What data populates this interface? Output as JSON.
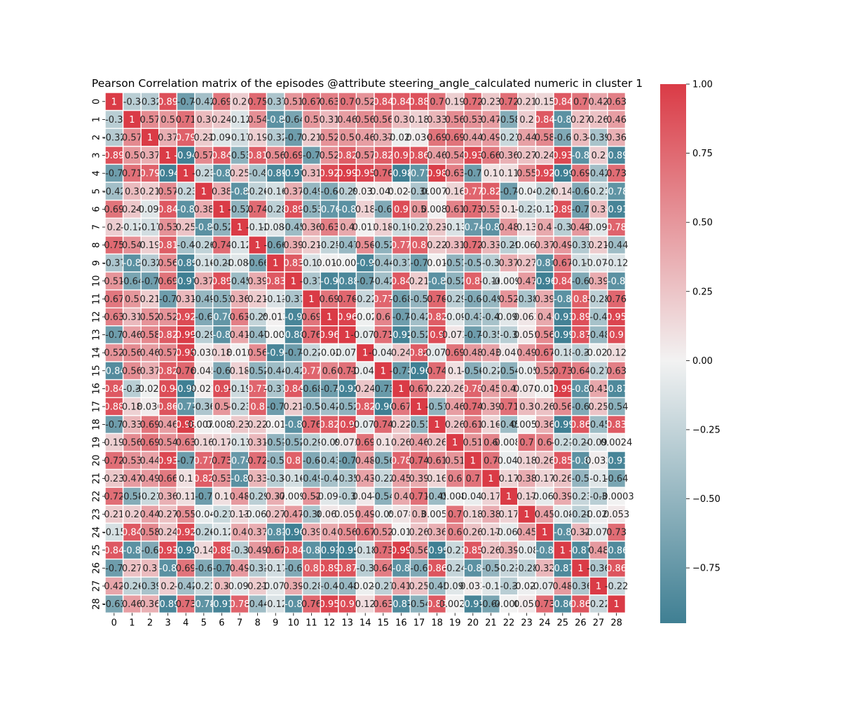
{
  "chart_data": {
    "type": "heatmap",
    "title": "Pearson Correlation matrix of the episodes  @attribute steering_angle_calculated numeric in cluster  1",
    "xlabel": "",
    "ylabel": "",
    "x_categories": [
      "0",
      "1",
      "2",
      "3",
      "4",
      "5",
      "6",
      "7",
      "8",
      "9",
      "10",
      "11",
      "12",
      "13",
      "14",
      "15",
      "16",
      "17",
      "18",
      "19",
      "20",
      "21",
      "22",
      "23",
      "24",
      "25",
      "26",
      "27",
      "28"
    ],
    "y_categories": [
      "0",
      "1",
      "2",
      "3",
      "4",
      "5",
      "6",
      "7",
      "8",
      "9",
      "10",
      "11",
      "12",
      "13",
      "14",
      "15",
      "16",
      "17",
      "18",
      "19",
      "20",
      "21",
      "22",
      "23",
      "24",
      "25",
      "26",
      "27",
      "28"
    ],
    "vmin": -0.95,
    "vmax": 1.0,
    "colorbar_ticks": [
      1.0,
      0.75,
      0.5,
      0.25,
      0.0,
      -0.25,
      -0.5,
      -0.75
    ],
    "colorbar_tick_labels": [
      "1.00",
      "0.75",
      "0.50",
      "0.25",
      "0.00",
      "−0.25",
      "−0.50",
      "−0.75"
    ],
    "colormap": {
      "negative": "#3f7f93",
      "center": "#f2f2f2",
      "positive": "#da3b46"
    },
    "grid_color": "#ffffff",
    "legend": "colorbar-right",
    "values": [
      [
        1,
        -0.3,
        -0.32,
        0.89,
        -0.7,
        -0.42,
        0.69,
        0.2,
        0.75,
        -0.37,
        0.51,
        0.67,
        0.63,
        0.7,
        0.52,
        0.84,
        0.84,
        0.88,
        0.7,
        0.19,
        0.72,
        0.23,
        0.72,
        0.21,
        0.15,
        0.84,
        0.7,
        0.42,
        0.63
      ],
      [
        -0.3,
        1,
        0.57,
        0.5,
        0.71,
        0.3,
        0.24,
        -0.12,
        0.54,
        -0.8,
        -0.64,
        0.5,
        0.31,
        0.46,
        0.56,
        0.56,
        0.3,
        0.18,
        0.33,
        0.56,
        0.53,
        0.47,
        -0.58,
        0.2,
        0.84,
        -0.8,
        0.27,
        0.26,
        0.46
      ],
      [
        -0.32,
        0.57,
        1,
        0.37,
        0.79,
        0.21,
        -0.099,
        -0.17,
        0.19,
        -0.32,
        -0.7,
        0.21,
        0.52,
        0.5,
        0.46,
        0.37,
        -0.026,
        0.036,
        0.69,
        0.69,
        0.44,
        0.49,
        -0.21,
        0.44,
        0.58,
        -0.6,
        0.3,
        -0.39,
        0.36
      ],
      [
        0.89,
        0.5,
        0.37,
        1,
        -0.94,
        0.57,
        0.84,
        -0.53,
        0.81,
        0.56,
        0.69,
        -0.7,
        0.52,
        0.82,
        0.57,
        0.82,
        0.9,
        0.86,
        0.46,
        0.54,
        0.93,
        0.66,
        0.36,
        0.27,
        0.24,
        0.93,
        -0.8,
        0.2,
        -0.89
      ],
      [
        -0.7,
        0.71,
        0.79,
        -0.94,
        1,
        -0.23,
        -0.8,
        0.25,
        -0.4,
        -0.89,
        -0.97,
        0.31,
        0.92,
        0.99,
        0.95,
        0.76,
        -0.98,
        -0.77,
        0.98,
        0.63,
        -0.7,
        0.1,
        0.11,
        0.55,
        0.92,
        -0.99,
        0.69,
        -0.42,
        0.73
      ],
      [
        -0.42,
        0.3,
        0.21,
        0.57,
        -0.23,
        1,
        0.38,
        -0.8,
        -0.26,
        -0.16,
        0.37,
        -0.49,
        -0.6,
        -0.29,
        0.033,
        0.045,
        0.021,
        -0.36,
        0.0074,
        0.16,
        0.77,
        0.82,
        -0.7,
        -0.04,
        -0.26,
        0.14,
        -0.6,
        -0.21,
        -0.78
      ],
      [
        0.69,
        0.24,
        -0.099,
        0.84,
        -0.8,
        0.38,
        1,
        -0.52,
        0.74,
        -0.28,
        0.89,
        -0.53,
        -0.76,
        -0.8,
        0.18,
        -0.6,
        0.9,
        0.5,
        0.0086,
        0.61,
        0.73,
        0.53,
        0.1,
        -0.21,
        -0.12,
        0.89,
        -0.7,
        0.3,
        -0.91
      ],
      [
        0.2,
        -0.12,
        -0.17,
        0.53,
        0.25,
        -0.8,
        -0.52,
        1,
        -0.12,
        -0.089,
        -0.45,
        0.36,
        0.63,
        0.4,
        0.012,
        0.18,
        -0.19,
        -0.23,
        0.23,
        -0.13,
        -0.74,
        -0.8,
        0.48,
        0.13,
        0.4,
        -0.3,
        0.49,
        -0.092,
        0.78
      ],
      [
        0.75,
        0.54,
        0.19,
        0.81,
        -0.4,
        -0.26,
        0.74,
        -0.12,
        1,
        -0.66,
        0.39,
        0.21,
        -0.25,
        -0.47,
        0.56,
        -0.52,
        0.77,
        0.8,
        0.22,
        0.31,
        0.72,
        0.33,
        -0.29,
        -0.067,
        0.37,
        0.49,
        -0.33,
        0.21,
        -0.44
      ],
      [
        -0.37,
        -0.8,
        -0.32,
        0.56,
        -0.89,
        -0.16,
        -0.28,
        -0.089,
        -0.66,
        1,
        0.83,
        -0.13,
        0.013,
        -0.004,
        -0.9,
        -0.44,
        -0.37,
        -0.7,
        0.01,
        -0.51,
        -0.5,
        -0.3,
        0.37,
        0.27,
        -0.81,
        0.67,
        -0.17,
        -0.079,
        -0.12
      ],
      [
        0.51,
        -0.64,
        -0.7,
        0.69,
        -0.97,
        0.37,
        0.89,
        -0.45,
        0.39,
        0.83,
        1,
        -0.37,
        -0.9,
        -0.88,
        -0.7,
        -0.42,
        0.84,
        0.21,
        -0.8,
        -0.52,
        0.8,
        -0.16,
        -0.0094,
        0.47,
        -0.96,
        0.84,
        -0.6,
        0.39,
        -0.8
      ],
      [
        0.67,
        0.5,
        0.21,
        -0.7,
        0.31,
        -0.49,
        -0.53,
        0.36,
        0.21,
        -0.13,
        -0.37,
        1,
        0.69,
        0.76,
        -0.22,
        0.77,
        -0.68,
        -0.5,
        0.76,
        -0.29,
        -0.6,
        -0.49,
        0.52,
        -0.38,
        0.39,
        -0.8,
        0.8,
        -0.28,
        0.76
      ],
      [
        0.63,
        0.31,
        0.52,
        0.52,
        0.92,
        -0.6,
        -0.76,
        0.63,
        -0.25,
        0.013,
        -0.9,
        0.69,
        1,
        0.96,
        -0.02,
        0.6,
        -0.7,
        -0.42,
        0.82,
        -0.09,
        -0.43,
        -0.4,
        -0.091,
        0.063,
        0.4,
        -0.93,
        0.89,
        -0.4,
        0.95
      ],
      [
        -0.7,
        0.46,
        0.58,
        0.82,
        0.99,
        -0.29,
        -0.8,
        0.41,
        -0.47,
        -0.004,
        -0.88,
        0.76,
        0.96,
        1,
        -0.077,
        0.71,
        -0.92,
        -0.52,
        0.9,
        0.072,
        -0.7,
        -0.35,
        -0.3,
        0.055,
        0.56,
        -0.99,
        0.87,
        -0.48,
        0.9
      ],
      [
        0.52,
        0.56,
        0.46,
        0.57,
        0.95,
        0.033,
        0.18,
        0.012,
        0.56,
        -0.9,
        -0.7,
        -0.22,
        -0.02,
        -0.077,
        1,
        -0.049,
        0.24,
        0.82,
        -0.075,
        0.69,
        0.48,
        0.43,
        0.047,
        0.49,
        0.67,
        -0.18,
        -0.3,
        -0.027,
        0.12
      ],
      [
        -0.84,
        0.56,
        0.37,
        0.82,
        0.76,
        0.045,
        -0.6,
        0.18,
        -0.52,
        -0.44,
        -0.42,
        0.77,
        0.6,
        0.71,
        -0.049,
        1,
        -0.73,
        -0.96,
        0.74,
        0.1,
        -0.56,
        -0.22,
        -0.54,
        -0.05,
        0.52,
        0.73,
        0.64,
        -0.27,
        0.63
      ],
      [
        0.84,
        -0.3,
        -0.026,
        0.9,
        -0.98,
        0.021,
        0.9,
        -0.19,
        0.77,
        -0.37,
        0.84,
        -0.68,
        -0.7,
        -0.92,
        0.24,
        -0.73,
        1,
        0.67,
        0.22,
        0.26,
        0.78,
        0.45,
        0.4,
        0.078,
        0.01,
        0.99,
        -0.8,
        0.41,
        -0.87
      ],
      [
        0.88,
        0.18,
        0.036,
        0.86,
        -0.77,
        -0.36,
        0.5,
        -0.23,
        0.8,
        -0.7,
        0.21,
        -0.5,
        -0.42,
        -0.52,
        0.82,
        -0.96,
        0.67,
        1,
        -0.51,
        0.46,
        0.74,
        0.39,
        0.71,
        0.3,
        0.26,
        0.56,
        -0.6,
        0.25,
        -0.54
      ],
      [
        -0.7,
        0.33,
        0.69,
        0.46,
        0.98,
        0.0074,
        0.0086,
        0.23,
        0.22,
        0.01,
        -0.8,
        0.76,
        0.82,
        0.9,
        -0.075,
        0.74,
        0.22,
        -0.51,
        1,
        0.26,
        0.61,
        0.16,
        -0.45,
        0.0055,
        0.36,
        -0.99,
        0.86,
        -0.45,
        0.83
      ],
      [
        0.19,
        0.56,
        0.69,
        0.54,
        0.63,
        0.16,
        0.17,
        -0.13,
        0.31,
        -0.51,
        -0.52,
        -0.29,
        -0.09,
        0.072,
        0.69,
        0.1,
        0.26,
        0.46,
        0.26,
        1,
        0.51,
        0.6,
        -0.0084,
        0.7,
        0.6,
        -0.21,
        -0.24,
        -0.095,
        0.0024
      ],
      [
        0.72,
        0.53,
        0.44,
        0.93,
        -0.7,
        0.77,
        0.73,
        -0.74,
        0.72,
        -0.5,
        0.8,
        -0.6,
        -0.43,
        -0.7,
        0.48,
        -0.56,
        0.78,
        0.74,
        0.61,
        0.51,
        1,
        0.7,
        -0.042,
        0.18,
        0.26,
        0.85,
        -0.8,
        0.033,
        -0.91
      ],
      [
        0.23,
        0.47,
        0.49,
        0.66,
        0.1,
        0.82,
        0.53,
        -0.8,
        0.33,
        -0.3,
        -0.16,
        -0.49,
        -0.4,
        -0.35,
        0.43,
        -0.22,
        0.45,
        0.39,
        0.16,
        0.6,
        0.7,
        1,
        0.17,
        0.38,
        0.17,
        0.26,
        -0.5,
        -0.1,
        -0.64
      ],
      [
        0.72,
        -0.58,
        -0.21,
        0.36,
        0.11,
        -0.7,
        0.1,
        0.48,
        -0.29,
        0.37,
        -0.0094,
        0.52,
        -0.091,
        -0.3,
        0.047,
        -0.54,
        0.4,
        0.71,
        -0.45,
        -0.0084,
        -0.042,
        0.17,
        1,
        0.17,
        -0.066,
        0.39,
        -0.23,
        -0.3,
        -0.0003
      ],
      [
        0.21,
        0.2,
        0.44,
        0.27,
        0.55,
        -0.04,
        -0.21,
        0.13,
        -0.067,
        0.27,
        0.47,
        -0.38,
        0.063,
        0.055,
        0.49,
        -0.05,
        0.078,
        0.3,
        0.0055,
        0.7,
        0.18,
        0.38,
        0.17,
        1,
        0.45,
        -0.08,
        -0.28,
        -0.022,
        0.053
      ],
      [
        -0.15,
        0.84,
        0.58,
        0.24,
        0.92,
        -0.26,
        -0.12,
        0.4,
        0.37,
        -0.81,
        -0.96,
        0.39,
        0.4,
        0.56,
        0.67,
        0.52,
        0.01,
        0.26,
        0.36,
        0.6,
        0.26,
        0.17,
        -0.066,
        0.45,
        1,
        -0.8,
        0.32,
        -0.073,
        0.73
      ],
      [
        0.84,
        -0.8,
        -0.6,
        0.93,
        -0.99,
        0.14,
        0.89,
        -0.3,
        0.49,
        0.67,
        0.84,
        -0.8,
        -0.93,
        -0.99,
        -0.18,
        0.73,
        0.99,
        0.56,
        -0.99,
        -0.21,
        0.85,
        0.26,
        0.39,
        -0.08,
        -0.8,
        1,
        -0.87,
        0.48,
        -0.86
      ],
      [
        -0.7,
        0.27,
        0.3,
        -0.8,
        0.69,
        -0.6,
        -0.7,
        0.49,
        -0.33,
        -0.17,
        -0.6,
        0.8,
        0.89,
        0.87,
        -0.3,
        0.64,
        -0.8,
        -0.6,
        0.86,
        -0.24,
        -0.8,
        -0.5,
        -0.23,
        -0.28,
        0.32,
        -0.87,
        1,
        -0.36,
        0.86
      ],
      [
        0.42,
        -0.26,
        -0.39,
        0.2,
        -0.42,
        -0.21,
        0.3,
        -0.092,
        0.21,
        -0.079,
        0.39,
        -0.28,
        -0.4,
        -0.48,
        -0.027,
        -0.27,
        0.41,
        0.25,
        -0.45,
        -0.095,
        0.033,
        -0.1,
        -0.3,
        -0.022,
        -0.073,
        0.48,
        -0.36,
        1,
        -0.22
      ],
      [
        -0.63,
        0.46,
        0.36,
        -0.89,
        0.73,
        -0.78,
        -0.91,
        0.78,
        -0.44,
        -0.12,
        -0.8,
        0.76,
        0.95,
        0.9,
        0.12,
        0.63,
        -0.87,
        -0.54,
        0.83,
        0.0024,
        -0.91,
        -0.64,
        -0.0003,
        0.053,
        0.73,
        -0.86,
        0.86,
        -0.22,
        1
      ]
    ]
  }
}
